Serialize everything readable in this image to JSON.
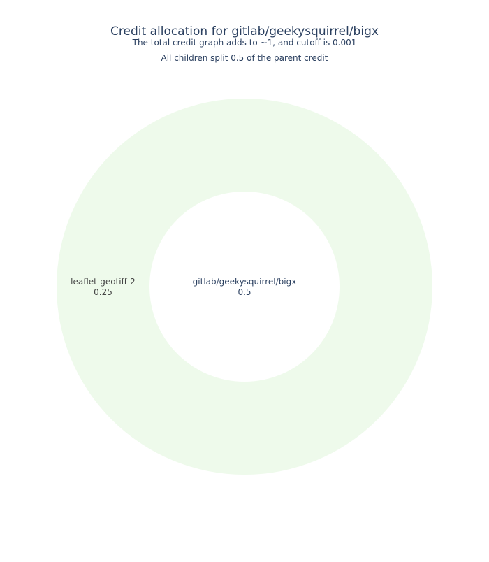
{
  "chart_data": {
    "type": "sunburst",
    "title": "Credit allocation for gitlab/geekysquirrel/bigx",
    "subtitle_lines": [
      "The total credit graph adds to ~1, and cutoff is 0.001",
      "All children split 0.5 of the parent credit"
    ],
    "root": {
      "label": "gitlab/geekysquirrel/bigx",
      "value": 0.5
    },
    "children": [
      {
        "label": "leaflet-geotiff-2",
        "value": 0.25,
        "color": "#eefaeb"
      }
    ],
    "colors": {
      "text": "#2a3f5f",
      "outer_label_text": "#444444",
      "root_fill": "#ffffff"
    }
  }
}
